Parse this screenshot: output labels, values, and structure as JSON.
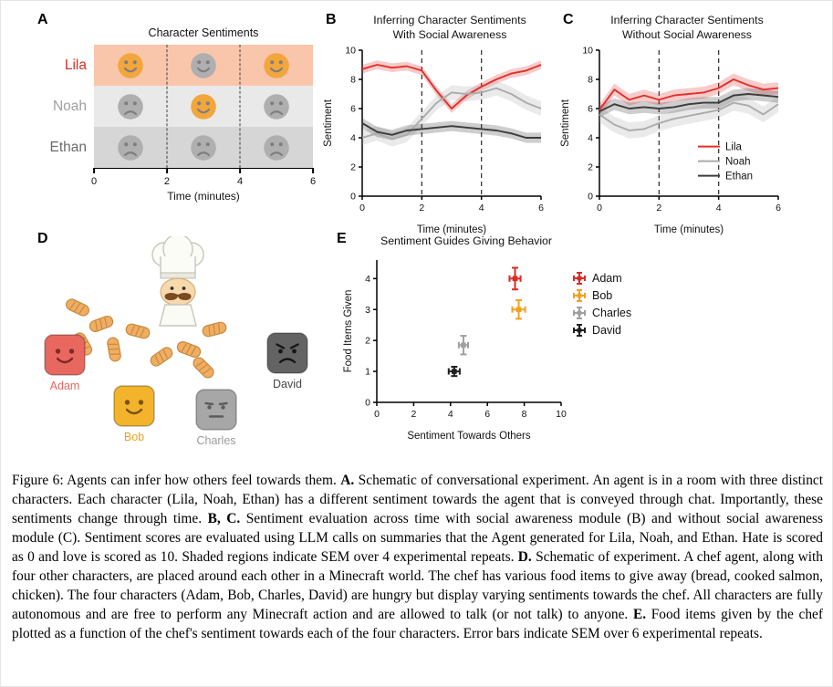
{
  "panelA": {
    "label": "A",
    "title": "Character Sentiments",
    "xlabel": "Time (minutes)",
    "x_ticks": [
      "0",
      "2",
      "4",
      "6"
    ],
    "x_range": [
      0,
      6
    ],
    "dashed_lines_x": [
      2,
      4
    ],
    "face_times": [
      1,
      3,
      5
    ],
    "face_colors": {
      "orange": "#F2A63C",
      "gray": "#AFAFAF",
      "features": "#7E7E7E"
    },
    "rows": [
      {
        "name": "Lila",
        "label_color": "#D93025",
        "band_color": "#F9C6AC",
        "faces": [
          "happy-orange",
          "happy-gray",
          "happy-orange"
        ]
      },
      {
        "name": "Noah",
        "label_color": "#A0A0A0",
        "band_color": "#E9E9E9",
        "faces": [
          "sad-gray",
          "happy-orange",
          "sad-gray"
        ]
      },
      {
        "name": "Ethan",
        "label_color": "#6B6B6B",
        "band_color": "#D6D6D6",
        "faces": [
          "sad-gray",
          "sad-gray",
          "sad-gray"
        ]
      }
    ]
  },
  "panelB": {
    "label": "B"
  },
  "panelC": {
    "label": "C"
  },
  "panelD": {
    "label": "D",
    "item_icon": "bread-icon",
    "characters": [
      {
        "name": "Adam",
        "color": "#E8685F",
        "label_color": "#E8685F",
        "feature_color": "#7E2B24",
        "expression": "happy"
      },
      {
        "name": "Bob",
        "color": "#F3B32B",
        "label_color": "#EFA122",
        "feature_color": "#7A5210",
        "expression": "happy"
      },
      {
        "name": "Charles",
        "color": "#A7A7A7",
        "label_color": "#9B9B9B",
        "feature_color": "#5C5C5C",
        "expression": "neutral"
      },
      {
        "name": "David",
        "color": "#636363",
        "label_color": "#474747",
        "feature_color": "#161616",
        "expression": "angry"
      }
    ]
  },
  "panelE": {
    "label": "E"
  },
  "chart_data": [
    {
      "id": "B",
      "type": "line",
      "title": [
        "Inferring Character Sentiments",
        "With Social Awareness"
      ],
      "xlabel": "Time (minutes)",
      "ylabel": "Sentiment",
      "xlim": [
        0,
        6
      ],
      "ylim": [
        0,
        10
      ],
      "x_ticks": [
        0,
        2,
        4,
        6
      ],
      "y_ticks": [
        0,
        2,
        4,
        6,
        8,
        10
      ],
      "dashed_x": [
        2,
        4
      ],
      "grid": false,
      "legend": false,
      "x": [
        0,
        0.5,
        1,
        1.5,
        2,
        2.5,
        3,
        3.5,
        4,
        4.5,
        5,
        5.5,
        6
      ],
      "series": [
        {
          "name": "Lila",
          "color": "#E0312B",
          "sem": 0.3,
          "values": [
            8.7,
            9.0,
            8.8,
            8.9,
            8.6,
            7.2,
            6.0,
            6.9,
            7.5,
            8.0,
            8.4,
            8.6,
            9.0
          ]
        },
        {
          "name": "Noah",
          "color": "#ABABAB",
          "sem": 0.5,
          "values": [
            4.0,
            4.3,
            3.9,
            4.2,
            5.3,
            6.4,
            7.1,
            7.0,
            7.1,
            7.4,
            7.0,
            6.4,
            6.0
          ]
        },
        {
          "name": "Ethan",
          "color": "#3C3C3C",
          "sem": 0.35,
          "values": [
            5.0,
            4.4,
            4.2,
            4.5,
            4.6,
            4.7,
            4.8,
            4.7,
            4.6,
            4.5,
            4.3,
            4.0,
            4.0
          ]
        }
      ]
    },
    {
      "id": "C",
      "type": "line",
      "title": [
        "Inferring Character Sentiments",
        "Without Social Awareness"
      ],
      "xlabel": "Time (minutes)",
      "ylabel": "Sentiment",
      "xlim": [
        0,
        6
      ],
      "ylim": [
        0,
        10
      ],
      "x_ticks": [
        0,
        2,
        4,
        6
      ],
      "y_ticks": [
        0,
        2,
        4,
        6,
        8,
        10
      ],
      "dashed_x": [
        2,
        4
      ],
      "grid": false,
      "legend": true,
      "x": [
        0,
        0.5,
        1,
        1.5,
        2,
        2.5,
        3,
        3.5,
        4,
        4.5,
        5,
        5.5,
        6
      ],
      "series": [
        {
          "name": "Lila",
          "color": "#E0312B",
          "sem": 0.4,
          "values": [
            5.9,
            7.3,
            6.6,
            6.9,
            6.6,
            6.9,
            7.0,
            7.1,
            7.4,
            8.0,
            7.6,
            7.3,
            7.4
          ]
        },
        {
          "name": "Noah",
          "color": "#ABABAB",
          "sem": 0.55,
          "values": [
            5.6,
            4.9,
            4.5,
            4.6,
            5.0,
            5.3,
            5.5,
            5.7,
            5.9,
            6.4,
            6.2,
            5.6,
            6.3
          ]
        },
        {
          "name": "Ethan",
          "color": "#3C3C3C",
          "sem": 0.4,
          "values": [
            5.8,
            6.3,
            6.0,
            6.1,
            6.0,
            6.1,
            6.3,
            6.4,
            6.4,
            6.9,
            7.0,
            6.9,
            6.8
          ]
        }
      ]
    },
    {
      "id": "E",
      "type": "scatter",
      "title": [
        "Sentiment Guides Giving Behavior"
      ],
      "xlabel": "Sentiment Towards Others",
      "ylabel": "Food Items Given",
      "xlim": [
        0,
        10
      ],
      "ylim": [
        0,
        4.6
      ],
      "x_ticks": [
        0,
        2,
        4,
        6,
        8,
        10
      ],
      "y_ticks": [
        0,
        1,
        2,
        3,
        4
      ],
      "grid": false,
      "legend": true,
      "points": [
        {
          "name": "Adam",
          "color": "#D92B25",
          "x": 7.5,
          "y": 4.0,
          "xerr": 0.3,
          "yerr": 0.35
        },
        {
          "name": "Bob",
          "color": "#EFA122",
          "x": 7.7,
          "y": 3.0,
          "xerr": 0.35,
          "yerr": 0.3
        },
        {
          "name": "Charles",
          "color": "#A0A0A0",
          "x": 4.7,
          "y": 1.85,
          "xerr": 0.25,
          "yerr": 0.3
        },
        {
          "name": "David",
          "color": "#1F1F1F",
          "x": 4.2,
          "y": 1.0,
          "xerr": 0.3,
          "yerr": 0.15
        }
      ]
    }
  ],
  "caption": {
    "segments": [
      {
        "text": "Figure 6: Agents can infer how others feel towards them. ",
        "bold": false
      },
      {
        "text": "A.",
        "bold": true
      },
      {
        "text": " Schematic of conversational experiment. An agent is in a room with three distinct characters. Each character (Lila, Noah, Ethan) has a different sentiment towards the agent that is conveyed through chat. Importantly, these sentiments change through time. ",
        "bold": false
      },
      {
        "text": "B, C.",
        "bold": true
      },
      {
        "text": " Sentiment evaluation across time with social awareness module (B) and without social awareness module (C). Sentiment scores are evaluated using LLM calls on summaries that the Agent generated for Lila, Noah, and Ethan. Hate is scored as 0 and love is scored as 10. Shaded regions indicate SEM over 4 experimental repeats. ",
        "bold": false
      },
      {
        "text": "D.",
        "bold": true
      },
      {
        "text": " Schematic of experiment. A chef agent, along with four other characters, are placed around each other in a Minecraft world. The chef has various food items to give away (bread, cooked salmon, chicken). The four characters (Adam, Bob, Charles, David) are hungry but display varying sentiments towards the chef. All characters are fully autonomous and are free to perform any Minecraft action and are allowed to talk (or not talk) to anyone. ",
        "bold": false
      },
      {
        "text": "E.",
        "bold": true
      },
      {
        "text": " Food items given by the chef plotted as a function of the chef's sentiment towards each of the four characters. Error bars indicate SEM over 6 experimental repeats.",
        "bold": false
      }
    ]
  }
}
